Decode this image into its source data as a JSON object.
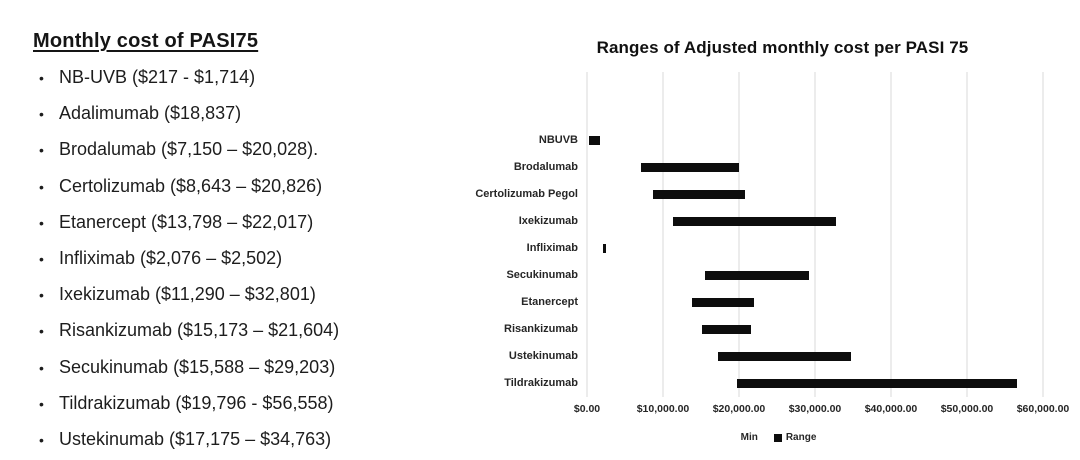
{
  "left_panel": {
    "title": "Monthly cost of PASI75",
    "bullet_glyph": "•",
    "items": [
      "NB-UVB ($217 - $1,714)",
      "Adalimumab ($18,837)",
      "Brodalumab ($7,150 – $20,028).",
      "Certolizumab ($8,643 – $20,826)",
      "Etanercept ($13,798 – $22,017)",
      "Infliximab ($2,076 – $2,502)",
      "Ixekizumab ($11,290 – $32,801)",
      "Risankizumab ($15,173 – $21,604)",
      "Secukinumab ($15,588 – $29,203)",
      "Tildrakizumab ($19,796 - $56,558)",
      "Ustekinumab ($17,175 – $34,763)"
    ]
  },
  "chart_data": {
    "type": "bar",
    "subtype": "floating-range-horizontal",
    "title": "Ranges of Adjusted monthly cost per PASI 75",
    "categories": [
      "NBUVB",
      "Brodalumab",
      "Certolizumab Pegol",
      "Ixekizumab",
      "Infliximab",
      "Secukinumab",
      "Etanercept",
      "Risankizumab",
      "Ustekinumab",
      "Tildrakizumab"
    ],
    "series": [
      {
        "name": "Min",
        "visible": false,
        "values": [
          217,
          7150,
          8643,
          11290,
          2076,
          15588,
          13798,
          15173,
          17175,
          19796
        ]
      },
      {
        "name": "Range",
        "visible": true,
        "values": [
          1497,
          12878,
          12183,
          21511,
          426,
          13615,
          8219,
          6431,
          17588,
          36762
        ]
      }
    ],
    "max_values": [
      1714,
      20028,
      20826,
      32801,
      2502,
      29203,
      22017,
      21604,
      34763,
      56558
    ],
    "xlim": [
      0,
      60000
    ],
    "x_tick_labels": [
      "$0.00",
      "$10,000.00",
      "$20,000.00",
      "$30,000.00",
      "$40,000.00",
      "$50,000.00",
      "$60,000.00"
    ],
    "xlabel": "",
    "ylabel": "",
    "grid": "vertical",
    "legend": [
      "Min",
      "Range"
    ],
    "legend_position": "bottom",
    "colors": {
      "bar": "#0d0d0d",
      "gridline": "#d9d9d9",
      "text": "#262626",
      "background": "#ffffff"
    }
  }
}
